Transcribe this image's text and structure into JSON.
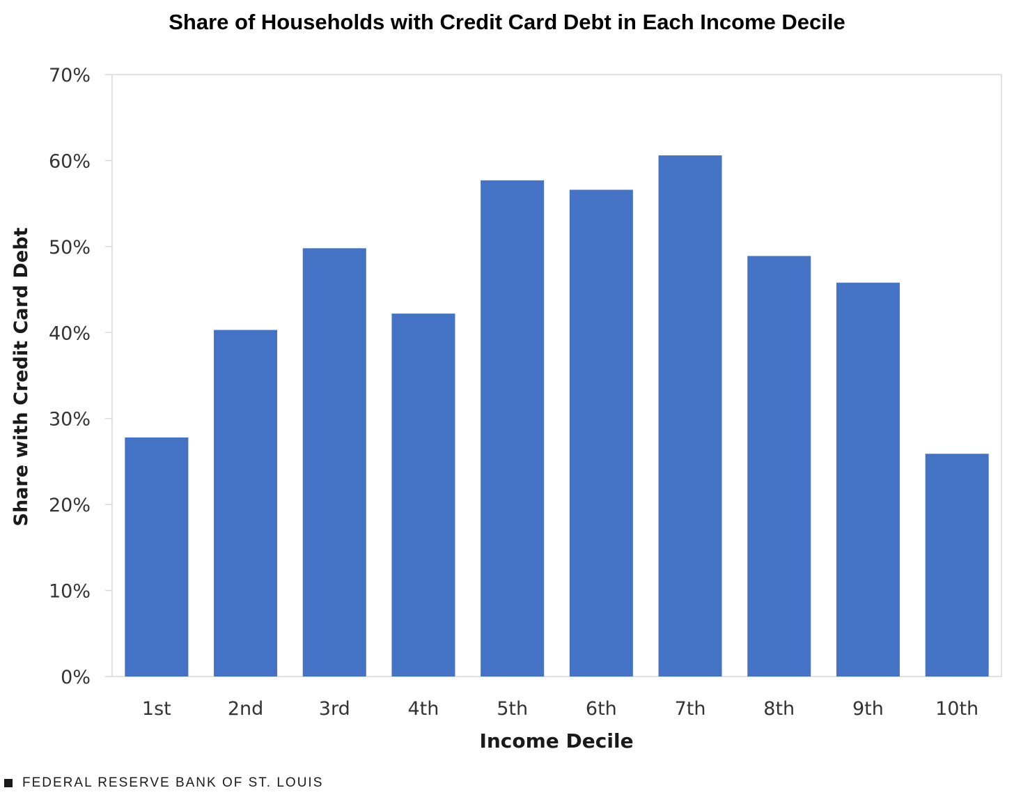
{
  "chart_data": {
    "type": "bar",
    "title": "Share of Households with Credit Card Debt in Each Income Decile",
    "xlabel": "Income Decile",
    "ylabel": "Share with Credit Card Debt",
    "categories": [
      "1st",
      "2nd",
      "3rd",
      "4th",
      "5th",
      "6th",
      "7th",
      "8th",
      "9th",
      "10th"
    ],
    "values": [
      27.8,
      40.3,
      49.8,
      42.2,
      57.7,
      56.6,
      60.6,
      48.9,
      45.8,
      25.9
    ],
    "ylim": [
      0,
      70
    ],
    "yticks": [
      0,
      10,
      20,
      30,
      40,
      50,
      60,
      70
    ],
    "ytick_labels": [
      "0%",
      "10%",
      "20%",
      "30%",
      "40%",
      "50%",
      "60%",
      "70%"
    ],
    "bar_color": "#4472C4",
    "grid": false,
    "legend": "none"
  },
  "footer": {
    "source": "FEDERAL RESERVE BANK OF ST. LOUIS"
  }
}
